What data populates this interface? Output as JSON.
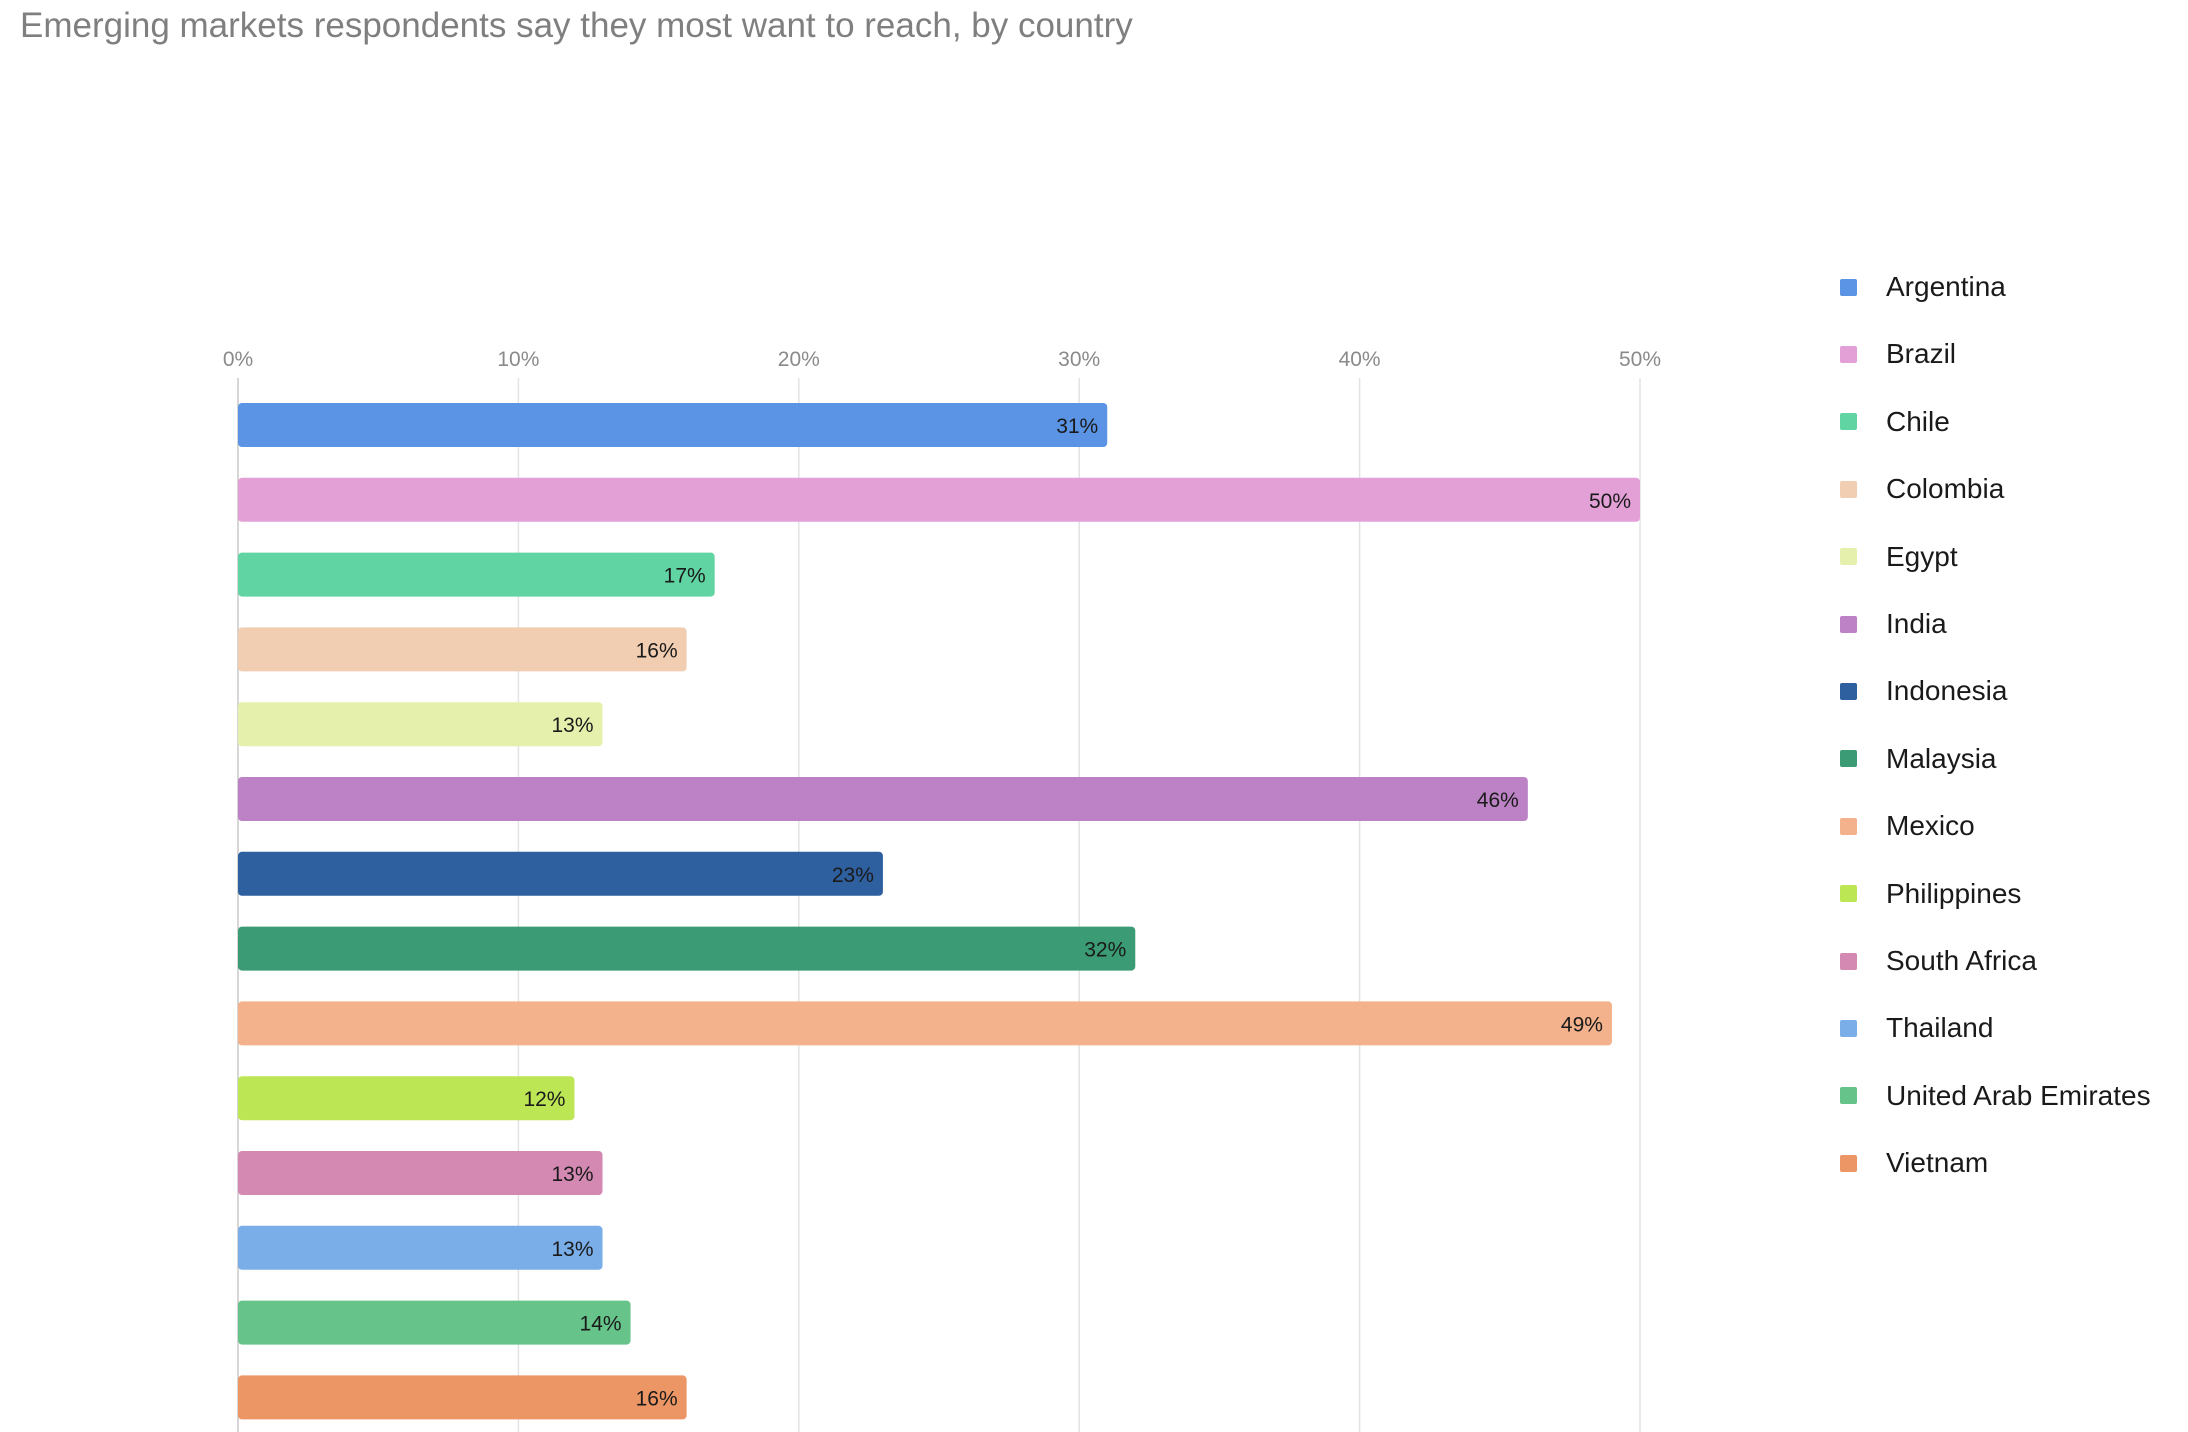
{
  "chart_data": {
    "type": "bar",
    "orientation": "horizontal",
    "title": "Emerging markets respondents say they most want to reach, by country",
    "categories": [
      "Argentina",
      "Brazil",
      "Chile",
      "Colombia",
      "Egypt",
      "India",
      "Indonesia",
      "Malaysia",
      "Mexico",
      "Philippines",
      "South Africa",
      "Thailand",
      "United Arab Emirates",
      "Vietnam"
    ],
    "values": [
      31,
      50,
      17,
      16,
      13,
      46,
      23,
      32,
      49,
      12,
      13,
      13,
      14,
      16
    ],
    "value_labels": [
      "31%",
      "50%",
      "17%",
      "16%",
      "13%",
      "46%",
      "23%",
      "32%",
      "49%",
      "12%",
      "13%",
      "13%",
      "14%",
      "16%"
    ],
    "colors": [
      "#5b93e5",
      "#e3a0d7",
      "#60d4a3",
      "#f1cdb1",
      "#e5f0ad",
      "#bc82c5",
      "#2e5f9e",
      "#3b9b75",
      "#f3b28c",
      "#bde655",
      "#d489b3",
      "#7aaee9",
      "#66c38a",
      "#ec9665"
    ],
    "xlim": [
      0,
      50
    ],
    "xticks": [
      0,
      10,
      20,
      30,
      40,
      50
    ],
    "xtick_labels": [
      "0%",
      "10%",
      "20%",
      "30%",
      "40%",
      "50%"
    ],
    "xaxis_position": "top",
    "grid": true,
    "legend_position": "right",
    "xlabel": "",
    "ylabel": ""
  }
}
